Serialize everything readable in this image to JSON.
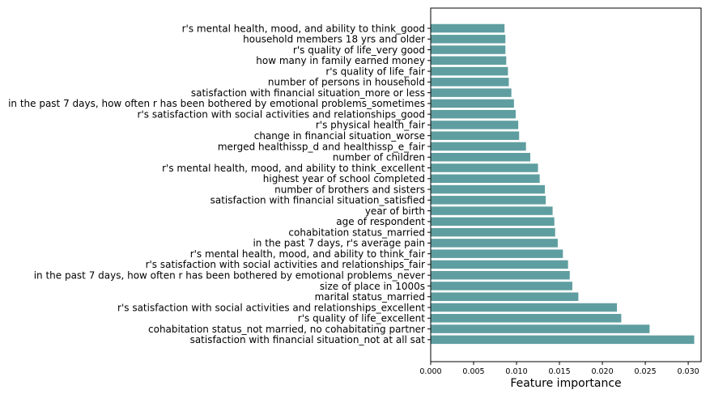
{
  "chart_data": {
    "type": "bar",
    "orientation": "horizontal",
    "title": "",
    "xlabel": "Feature importance",
    "ylabel": "",
    "xlim": [
      0,
      0.0315
    ],
    "xticks": [
      "0.000",
      "0.005",
      "0.010",
      "0.015",
      "0.020",
      "0.025",
      "0.030"
    ],
    "xtick_values": [
      0,
      0.005,
      0.01,
      0.015,
      0.02,
      0.025,
      0.03
    ],
    "grid": false,
    "bar_color": "#5f9ea0",
    "categories": [
      "r's mental health, mood, and ability to think_good",
      "household members 18 yrs and older",
      "r's quality of life_very good",
      "how many in family earned money",
      "r's quality of life_fair",
      "number of persons in household",
      "satisfaction with financial situation_more or less",
      "in the past 7 days, how often r has been bothered by emotional problems_sometimes",
      "r's satisfaction with social activities and relationships_good",
      "r's physical health_fair",
      "change in financial situation_worse",
      "merged healthissp_d and healthissp_e_fair",
      "number of children",
      "r's mental health, mood, and ability to think_excellent",
      "highest year of school completed",
      "number of brothers and sisters",
      "satisfaction with financial situation_satisfied",
      "year of birth",
      "age of respondent",
      "cohabitation status_married",
      "in the past 7 days, r's average pain",
      "r's mental health, mood, and ability to think_fair",
      "r's satisfaction with social activities and relationships_fair",
      "in the past 7 days, how often r has been bothered by emotional problems_never",
      "size of place in 1000s",
      "marital status_married",
      "r's satisfaction with social activities and relationships_excellent",
      "r's quality of life_excellent",
      "cohabitation status_not married, no cohabitating partner",
      "satisfaction with financial situation_not at all sat"
    ],
    "values": [
      0.0086,
      0.0087,
      0.0087,
      0.0088,
      0.009,
      0.0091,
      0.0094,
      0.0097,
      0.0099,
      0.0102,
      0.0103,
      0.0111,
      0.0116,
      0.0125,
      0.0127,
      0.0133,
      0.0134,
      0.0142,
      0.0144,
      0.0145,
      0.0148,
      0.0154,
      0.016,
      0.0162,
      0.0165,
      0.0172,
      0.0217,
      0.0222,
      0.0255,
      0.0307
    ]
  }
}
